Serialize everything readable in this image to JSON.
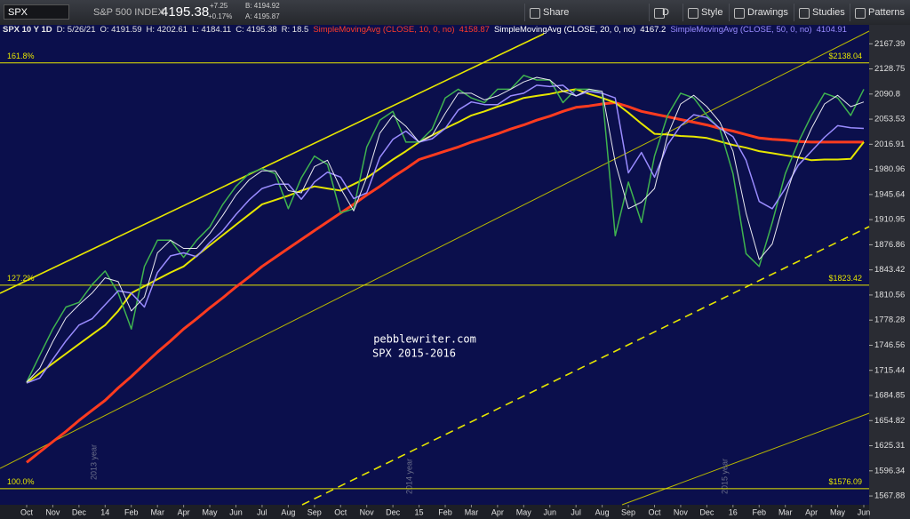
{
  "toolbar": {
    "symbol": "SPX",
    "description": "S&P 500 INDEX",
    "last": "4195.38",
    "change": "+7.25",
    "change_pct": "+0.17%",
    "bid": "B: 4194.92",
    "ask": "A: 4195.87",
    "buttons": [
      "Share",
      "D",
      "Style",
      "Drawings",
      "Studies",
      "Patterns"
    ]
  },
  "study_bar": {
    "chart_label": "SPX 10 Y 1D",
    "ohlc": [
      "D: 5/26/21",
      "O: 4191.59",
      "H: 4202.61",
      "L: 4184.11",
      "C: 4195.38",
      "R: 18.5"
    ],
    "studies": [
      {
        "name": "SimpleMovingAvg (CLOSE, 10, 0, no)",
        "value": 4158.87,
        "color": "#ff3b2a"
      },
      {
        "name": "SimpleMovingAvg (CLOSE, 20, 0, no)",
        "value": 4167.2,
        "color": "#ffffff"
      },
      {
        "name": "SimpleMovingAvg (CLOSE, 50, 0, no)",
        "value": 4104.91,
        "color": "#9a8cff"
      }
    ]
  },
  "chart_data": {
    "type": "line",
    "log_scale": true,
    "annotations": [
      "pebblewriter.com",
      "SPX 2015-2016"
    ],
    "year_labels": [
      "2013 year",
      "2014 year",
      "2015 year"
    ],
    "categories": [
      "Oct",
      null,
      "Nov",
      null,
      "Dec",
      null,
      "14",
      null,
      "Feb",
      null,
      "Mar",
      null,
      "Apr",
      null,
      "May",
      null,
      "Jun",
      null,
      "Jul",
      null,
      "Aug",
      null,
      "Sep",
      null,
      "Oct",
      null,
      "Nov",
      null,
      "Dec",
      null,
      "15",
      null,
      "Feb",
      null,
      "Mar",
      null,
      "Apr",
      null,
      "May",
      null,
      "Jun",
      null,
      "Jul",
      null,
      "Aug",
      null,
      "Sep",
      null,
      "Oct",
      null,
      "Nov",
      null,
      "Dec",
      null,
      "16",
      null,
      "Feb",
      null,
      "Mar",
      null,
      "Apr",
      null,
      "May",
      null,
      "Jun"
    ],
    "series": [
      {
        "color": "#ff3b1f",
        "width": 3,
        "values": [
          1606,
          1618,
          1630,
          1642,
          1655,
          1667,
          1679,
          1694,
          1708,
          1723,
          1738,
          1752,
          1767,
          1780,
          1794,
          1807,
          1821,
          1834,
          1848,
          1860,
          1872,
          1884,
          1896,
          1908,
          1920,
          1932,
          1945,
          1957,
          1970,
          1982,
          1995,
          2001,
          2007,
          2013,
          2020,
          2026,
          2032,
          2039,
          2045,
          2052,
          2058,
          2065,
          2071,
          2073,
          2076,
          2078,
          2072,
          2065,
          2061,
          2057,
          2053,
          2049,
          2045,
          2040,
          2036,
          2031,
          2026,
          2024,
          2023,
          2021,
          2020,
          2020,
          2020,
          2020,
          2020
        ]
      },
      {
        "color": "#e6e600",
        "width": 2,
        "values": [
          1700,
          1712,
          1724,
          1736,
          1748,
          1760,
          1772,
          1790,
          1813,
          1822,
          1831,
          1840,
          1848,
          1862,
          1876,
          1890,
          1904,
          1918,
          1932,
          1938,
          1944,
          1951,
          1957,
          1954,
          1951,
          1960,
          1969,
          1982,
          1995,
          2007,
          2020,
          2030,
          2040,
          2049,
          2059,
          2065,
          2072,
          2078,
          2085,
          2088,
          2091,
          2095,
          2098,
          2091,
          2085,
          2078,
          2063,
          2047,
          2032,
          2031,
          2029,
          2028,
          2026,
          2021,
          2016,
          2012,
          2007,
          2004,
          2001,
          1998,
          1994,
          1995,
          1995,
          1996,
          2020
        ]
      },
      {
        "color": "#3fb34f",
        "width": 1.5,
        "values": [
          1701,
          1734,
          1767,
          1795,
          1801,
          1824,
          1842,
          1813,
          1767,
          1848,
          1883,
          1883,
          1860,
          1883,
          1901,
          1932,
          1957,
          1975,
          1982,
          1975,
          1926,
          1969,
          2000,
          1988,
          1920,
          1926,
          2013,
          2052,
          2065,
          2020,
          2020,
          2039,
          2085,
          2098,
          2085,
          2078,
          2098,
          2098,
          2119,
          2112,
          2112,
          2078,
          2098,
          2098,
          2092,
          1889,
          1963,
          1907,
          2000,
          2059,
          2092,
          2085,
          2059,
          2039,
          1975,
          1865,
          1848,
          1907,
          1975,
          2020,
          2059,
          2092,
          2085,
          2059,
          2098
        ]
      },
      {
        "color": "#9a8cff",
        "width": 1.5,
        "values": [
          1700,
          1706,
          1729,
          1752,
          1772,
          1780,
          1798,
          1816,
          1813,
          1795,
          1840,
          1862,
          1866,
          1861,
          1880,
          1896,
          1918,
          1938,
          1954,
          1960,
          1960,
          1939,
          1963,
          1977,
          1970,
          1940,
          1948,
          1998,
          2024,
          2036,
          2020,
          2025,
          2040,
          2067,
          2079,
          2075,
          2075,
          2088,
          2092,
          2104,
          2102,
          2104,
          2088,
          2095,
          2092,
          2085,
          1976,
          2005,
          1970,
          2016,
          2044,
          2060,
          2056,
          2040,
          2028,
          1994,
          1936,
          1926,
          1954,
          1987,
          2007,
          2027,
          2044,
          2041,
          2040
        ]
      },
      {
        "color": "#e8e8f0",
        "width": 1,
        "values": [
          1701,
          1718,
          1751,
          1781,
          1798,
          1813,
          1833,
          1828,
          1790,
          1808,
          1866,
          1883,
          1872,
          1872,
          1892,
          1917,
          1945,
          1966,
          1979,
          1979,
          1951,
          1948,
          1985,
          1994,
          1954,
          1923,
          1970,
          2033,
          2059,
          2043,
          2020,
          2030,
          2062,
          2092,
          2092,
          2082,
          2088,
          2098,
          2109,
          2116,
          2112,
          2095,
          2088,
          2098,
          2095,
          1991,
          1926,
          1935,
          1954,
          2030,
          2076,
          2089,
          2072,
          2049,
          2007,
          1920,
          1857,
          1878,
          1941,
          1998,
          2040,
          2076,
          2089,
          2072,
          2079
        ]
      }
    ],
    "levels": [
      {
        "name": "161.8%",
        "value": 2138.04,
        "label": "$2138.04"
      },
      {
        "name": "127.2%",
        "value": 1823.42,
        "label": "$1823.42"
      },
      {
        "name": "100.0%",
        "value": 1576.09,
        "label": "$1576.09"
      }
    ],
    "ylim": [
      1558,
      2183
    ],
    "yticks": [
      2167.39,
      2128.75,
      2090.8,
      2053.53,
      2016.91,
      1980.96,
      1945.64,
      1910.95,
      1876.86,
      1843.42,
      1810.56,
      1778.28,
      1746.56,
      1715.44,
      1684.85,
      1654.82,
      1625.31,
      1596.34,
      1567.88
    ]
  }
}
